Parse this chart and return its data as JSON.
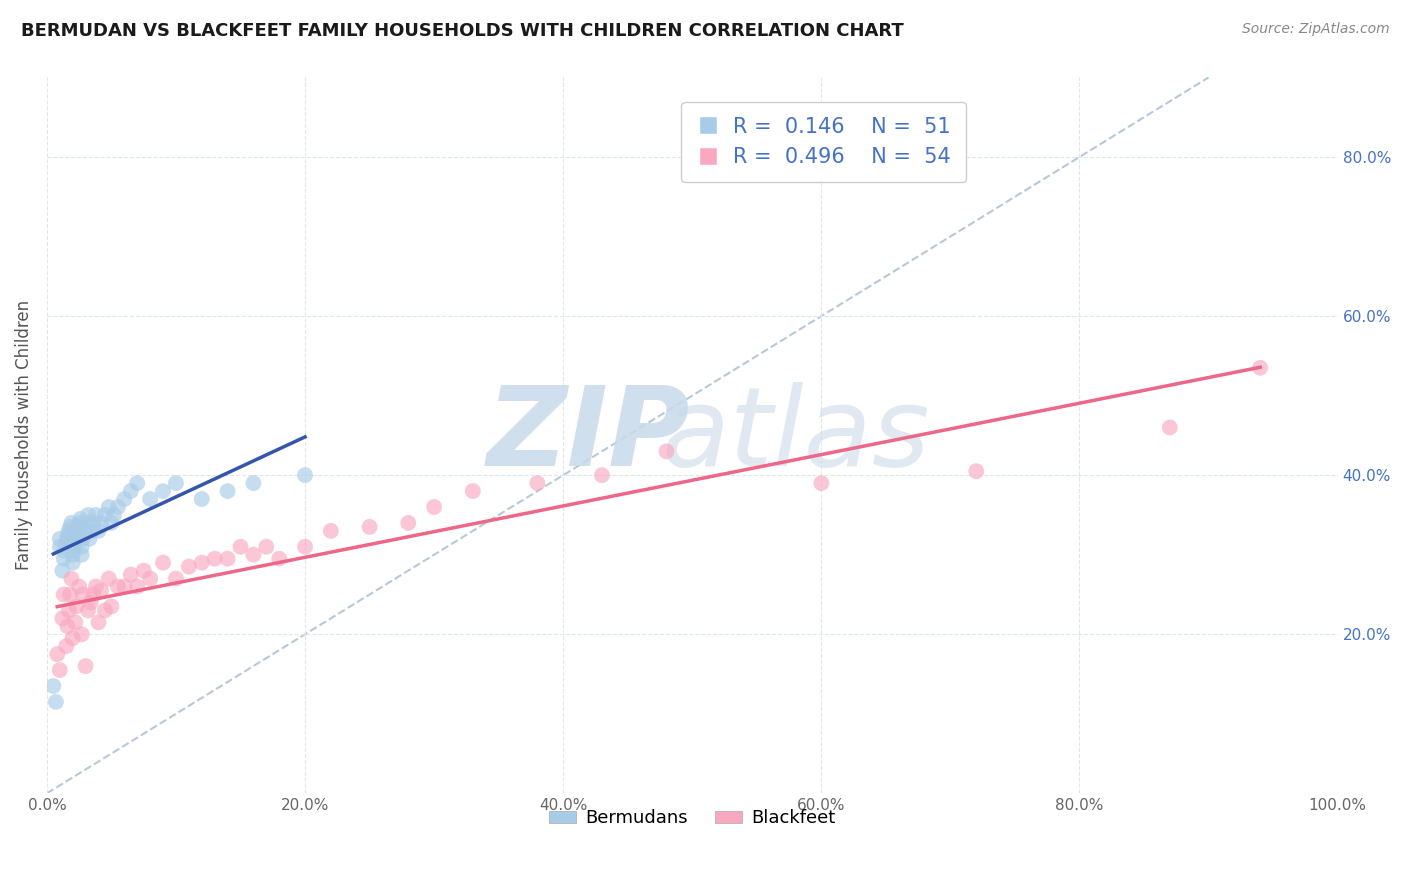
{
  "title": "BERMUDAN VS BLACKFEET FAMILY HOUSEHOLDS WITH CHILDREN CORRELATION CHART",
  "source": "Source: ZipAtlas.com",
  "ylabel": "Family Households with Children",
  "xlim": [
    0.0,
    1.0
  ],
  "ylim": [
    0.0,
    0.9
  ],
  "xticks": [
    0.0,
    0.2,
    0.4,
    0.6,
    0.8,
    1.0
  ],
  "xtick_labels": [
    "0.0%",
    "20.0%",
    "40.0%",
    "60.0%",
    "80.0%",
    "100.0%"
  ],
  "yticks": [
    0.2,
    0.4,
    0.6,
    0.8
  ],
  "ytick_labels": [
    "20.0%",
    "40.0%",
    "60.0%",
    "80.0%"
  ],
  "legend_label1": "Bermudans",
  "legend_label2": "Blackfeet",
  "r1": 0.146,
  "n1": 51,
  "r2": 0.496,
  "n2": 54,
  "color1": "#a8cce8",
  "color2": "#f9a8c0",
  "trendline_color1": "#3355aa",
  "trendline_color2": "#ee6688",
  "diagonal_color": "#b8c8d8",
  "background_color": "#ffffff",
  "grid_color": "#dde8ee",
  "bermudans_x": [
    0.005,
    0.007,
    0.01,
    0.01,
    0.012,
    0.013,
    0.013,
    0.015,
    0.016,
    0.016,
    0.017,
    0.018,
    0.019,
    0.02,
    0.02,
    0.021,
    0.021,
    0.022,
    0.022,
    0.023,
    0.023,
    0.024,
    0.025,
    0.026,
    0.027,
    0.027,
    0.028,
    0.03,
    0.03,
    0.032,
    0.033,
    0.035,
    0.036,
    0.038,
    0.04,
    0.042,
    0.045,
    0.048,
    0.05,
    0.052,
    0.055,
    0.06,
    0.065,
    0.07,
    0.08,
    0.09,
    0.1,
    0.12,
    0.14,
    0.16,
    0.2
  ],
  "bermudans_y": [
    0.135,
    0.115,
    0.31,
    0.32,
    0.28,
    0.295,
    0.305,
    0.315,
    0.32,
    0.325,
    0.33,
    0.335,
    0.34,
    0.29,
    0.3,
    0.305,
    0.31,
    0.315,
    0.32,
    0.325,
    0.33,
    0.335,
    0.34,
    0.345,
    0.3,
    0.31,
    0.32,
    0.33,
    0.34,
    0.35,
    0.32,
    0.33,
    0.34,
    0.35,
    0.33,
    0.34,
    0.35,
    0.36,
    0.34,
    0.35,
    0.36,
    0.37,
    0.38,
    0.39,
    0.37,
    0.38,
    0.39,
    0.37,
    0.38,
    0.39,
    0.4
  ],
  "blackfeet_x": [
    0.008,
    0.01,
    0.012,
    0.013,
    0.015,
    0.016,
    0.017,
    0.018,
    0.019,
    0.02,
    0.022,
    0.023,
    0.025,
    0.027,
    0.028,
    0.03,
    0.032,
    0.034,
    0.036,
    0.038,
    0.04,
    0.042,
    0.045,
    0.048,
    0.05,
    0.055,
    0.06,
    0.065,
    0.07,
    0.075,
    0.08,
    0.09,
    0.1,
    0.11,
    0.12,
    0.13,
    0.14,
    0.15,
    0.16,
    0.17,
    0.18,
    0.2,
    0.22,
    0.25,
    0.28,
    0.3,
    0.33,
    0.38,
    0.43,
    0.48,
    0.6,
    0.72,
    0.87,
    0.94
  ],
  "blackfeet_y": [
    0.175,
    0.155,
    0.22,
    0.25,
    0.185,
    0.21,
    0.23,
    0.25,
    0.27,
    0.195,
    0.215,
    0.235,
    0.26,
    0.2,
    0.25,
    0.16,
    0.23,
    0.24,
    0.25,
    0.26,
    0.215,
    0.255,
    0.23,
    0.27,
    0.235,
    0.26,
    0.26,
    0.275,
    0.26,
    0.28,
    0.27,
    0.29,
    0.27,
    0.285,
    0.29,
    0.295,
    0.295,
    0.31,
    0.3,
    0.31,
    0.295,
    0.31,
    0.33,
    0.335,
    0.34,
    0.36,
    0.38,
    0.39,
    0.4,
    0.43,
    0.39,
    0.405,
    0.46,
    0.535
  ]
}
